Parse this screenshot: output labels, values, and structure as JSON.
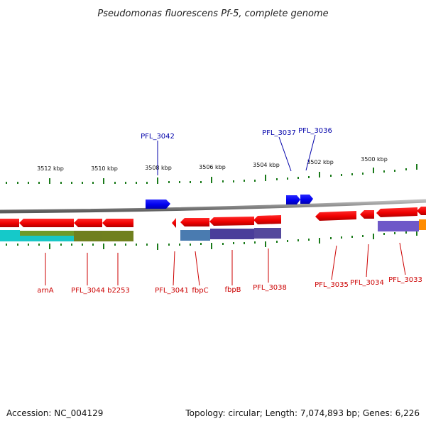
{
  "title": "Pseudomonas fluorescens Pf-5, complete genome",
  "colors": {
    "forward_gene": "#0000ff",
    "reverse_gene": "#ff0000",
    "forward_label": "#0000aa",
    "reverse_label": "#cc0000",
    "ticks": "#1a7a1a",
    "backbone": "#7a7a7a"
  },
  "scale_labels": [
    "3512 kbp",
    "3510 kbp",
    "3508 kbp",
    "3506 kbp",
    "3504 kbp",
    "3502 kbp",
    "3500 kbp"
  ],
  "forward_gene_labels": [
    "PFL_3042",
    "PFL_3037",
    "PFL_3036"
  ],
  "reverse_gene_labels": [
    "arnA",
    "PFL_3044",
    "b2253",
    "PFL_3041",
    "fbpC",
    "fbpB",
    "PFL_3038",
    "PFL_3035",
    "PFL_3034",
    "PFL_3033"
  ],
  "footer": {
    "accession": "Accession: NC_004129",
    "summary": "Topology: circular; Length: 7,074,893 bp; Genes: 6,226"
  }
}
